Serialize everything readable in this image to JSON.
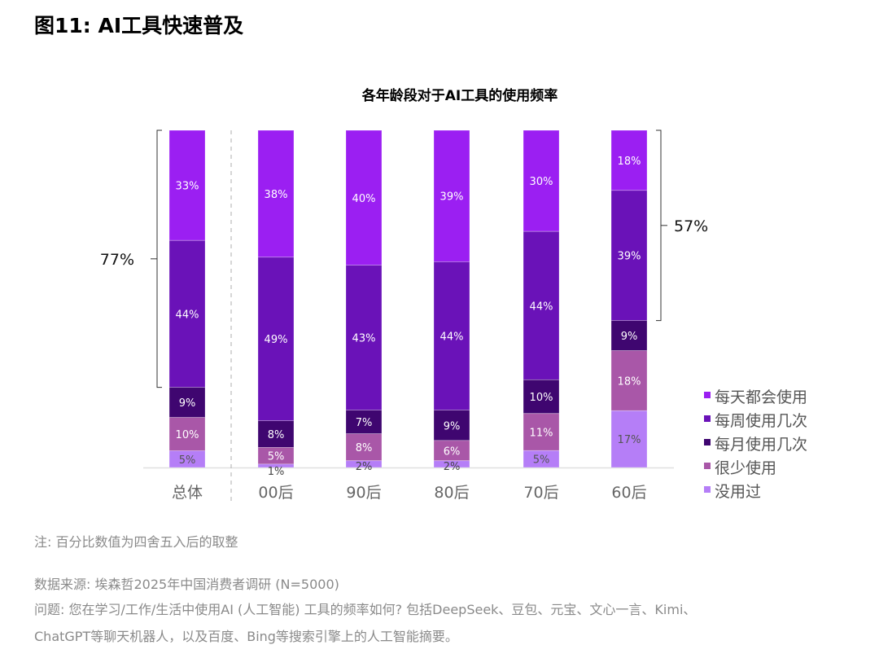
{
  "title": "图11: AI工具快速普及",
  "chart_data": {
    "type": "bar",
    "stacked": true,
    "title": "各年龄段对于AI工具的使用频率",
    "categories": [
      "总体",
      "00后",
      "90后",
      "80后",
      "70后",
      "60后"
    ],
    "ylim": [
      0,
      100
    ],
    "legend_position": "right-bottom",
    "series": [
      {
        "name": "每天都会使用",
        "color": "#9b1ff2",
        "values": [
          33,
          38,
          40,
          39,
          30,
          18
        ]
      },
      {
        "name": "每周使用几次",
        "color": "#6a12b8",
        "values": [
          44,
          49,
          43,
          44,
          44,
          39
        ]
      },
      {
        "name": "每月使用几次",
        "color": "#3f0670",
        "values": [
          9,
          8,
          7,
          9,
          10,
          9
        ]
      },
      {
        "name": "很少使用",
        "color": "#a957a8",
        "values": [
          10,
          5,
          8,
          6,
          11,
          18
        ]
      },
      {
        "name": "没用过",
        "color": "#b57ef7",
        "values": [
          5,
          1,
          2,
          2,
          5,
          17
        ]
      }
    ],
    "annotations": [
      {
        "category": "总体",
        "text": "77%"
      },
      {
        "category": "60后",
        "text": "57%"
      }
    ]
  },
  "notes": {
    "note": "注: 百分比数值为四舍五入后的取整",
    "source": "数据来源: 埃森哲2025年中国消费者调研 (N=5000)",
    "question_1": "问题: 您在学习/工作/生活中使用AI (人工智能) 工具的频率如何? 包括DeepSeek、豆包、元宝、文心一言、Kimi、",
    "question_2": "ChatGPT等聊天机器人，以及百度、Bing等搜索引擎上的人工智能摘要。"
  }
}
